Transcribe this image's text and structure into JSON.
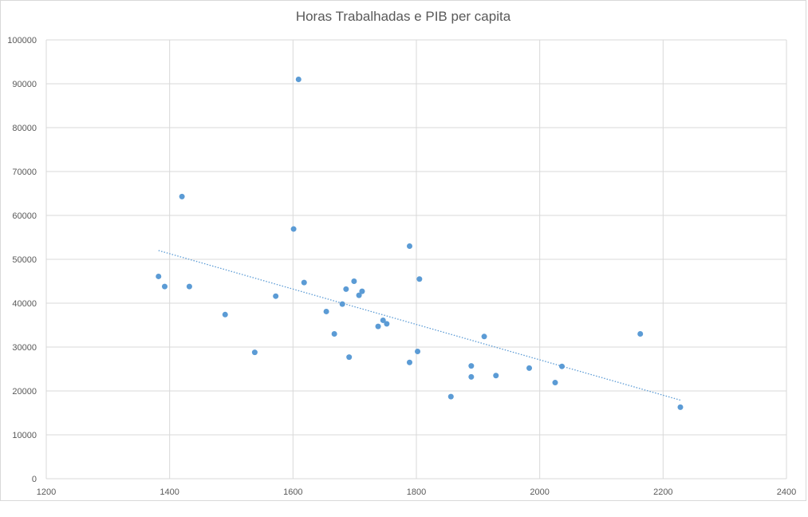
{
  "chart_data": {
    "type": "scatter",
    "title": "Horas Trabalhadas e PIB per capita",
    "xlabel": "",
    "ylabel": "",
    "xlim": [
      1200,
      2400
    ],
    "ylim": [
      0,
      100000
    ],
    "x_ticks": [
      1200,
      1400,
      1600,
      1800,
      2000,
      2200,
      2400
    ],
    "y_ticks": [
      0,
      10000,
      20000,
      30000,
      40000,
      50000,
      60000,
      70000,
      80000,
      90000,
      100000
    ],
    "grid": true,
    "legend": "none",
    "point_color": "#5b9bd5",
    "trendline": {
      "type": "linear",
      "style": "dotted",
      "color": "#5b9bd5",
      "points": [
        [
          1382,
          52000
        ],
        [
          2228,
          17900
        ]
      ]
    },
    "points": [
      {
        "x": 1609,
        "y": 91000
      },
      {
        "x": 1420,
        "y": 64300
      },
      {
        "x": 1601,
        "y": 56900
      },
      {
        "x": 1789,
        "y": 53000
      },
      {
        "x": 1382,
        "y": 46100
      },
      {
        "x": 1805,
        "y": 45500
      },
      {
        "x": 1699,
        "y": 45000
      },
      {
        "x": 1618,
        "y": 44700
      },
      {
        "x": 1392,
        "y": 43800
      },
      {
        "x": 1432,
        "y": 43800
      },
      {
        "x": 1686,
        "y": 43200
      },
      {
        "x": 1712,
        "y": 42700
      },
      {
        "x": 1707,
        "y": 41800
      },
      {
        "x": 1572,
        "y": 41600
      },
      {
        "x": 1680,
        "y": 39800
      },
      {
        "x": 1654,
        "y": 38100
      },
      {
        "x": 1490,
        "y": 37400
      },
      {
        "x": 1746,
        "y": 36100
      },
      {
        "x": 1752,
        "y": 35300
      },
      {
        "x": 1738,
        "y": 34700
      },
      {
        "x": 1667,
        "y": 33000
      },
      {
        "x": 2163,
        "y": 33000
      },
      {
        "x": 1910,
        "y": 32400
      },
      {
        "x": 1802,
        "y": 29000
      },
      {
        "x": 1538,
        "y": 28800
      },
      {
        "x": 1691,
        "y": 27700
      },
      {
        "x": 1789,
        "y": 26500
      },
      {
        "x": 1889,
        "y": 25700
      },
      {
        "x": 2036,
        "y": 25600
      },
      {
        "x": 1983,
        "y": 25200
      },
      {
        "x": 1929,
        "y": 23500
      },
      {
        "x": 1889,
        "y": 23200
      },
      {
        "x": 2025,
        "y": 21900
      },
      {
        "x": 1856,
        "y": 18700
      },
      {
        "x": 2228,
        "y": 16300
      }
    ]
  }
}
